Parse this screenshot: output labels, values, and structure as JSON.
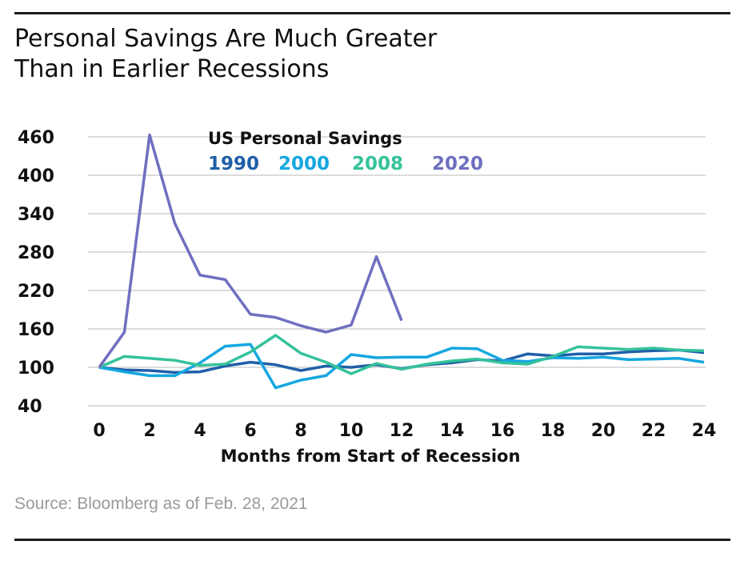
{
  "title_lines": [
    "Personal Savings Are Much Greater",
    "Than in Earlier Recessions"
  ],
  "source": "Source: Bloomberg as of Feb. 28, 2021",
  "chart_data": {
    "type": "line",
    "xlabel": "Months from Start of Recession",
    "ylabel": "",
    "legend_title": "US Personal Savings",
    "legend_position": "top-center",
    "grid": "horizontal",
    "xlim": [
      0,
      24
    ],
    "ylim": [
      40,
      460
    ],
    "xticks": [
      "0",
      "2",
      "4",
      "6",
      "8",
      "10",
      "12",
      "14",
      "16",
      "18",
      "20",
      "22",
      "24"
    ],
    "yticks": [
      "40",
      "100",
      "160",
      "220",
      "280",
      "340",
      "400",
      "460"
    ],
    "series": [
      {
        "name": "1990",
        "color": "#1f5fa8",
        "x": [
          0,
          1,
          2,
          3,
          4,
          5,
          6,
          7,
          8,
          9,
          10,
          11,
          12,
          13,
          14,
          15,
          16,
          17,
          18,
          19,
          20,
          21,
          22,
          23,
          24
        ],
        "values": [
          100,
          96,
          95,
          92,
          93,
          102,
          108,
          104,
          95,
          102,
          100,
          104,
          98,
          104,
          107,
          112,
          110,
          121,
          118,
          121,
          121,
          124,
          126,
          127,
          123
        ]
      },
      {
        "name": "2000",
        "color": "#14a7e0",
        "x": [
          0,
          1,
          2,
          3,
          4,
          5,
          6,
          7,
          8,
          9,
          10,
          11,
          12,
          13,
          14,
          15,
          16,
          17,
          18,
          19,
          20,
          21,
          22,
          23,
          24
        ],
        "values": [
          100,
          93,
          87,
          87,
          107,
          133,
          136,
          68,
          80,
          87,
          120,
          115,
          116,
          116,
          130,
          129,
          111,
          109,
          115,
          114,
          116,
          112,
          113,
          114,
          108
        ]
      },
      {
        "name": "2008",
        "color": "#35c29b",
        "x": [
          0,
          1,
          2,
          3,
          4,
          5,
          6,
          7,
          8,
          9,
          10,
          11,
          12,
          13,
          14,
          15,
          16,
          17,
          18,
          19,
          20,
          21,
          22,
          23,
          24
        ],
        "values": [
          100,
          117,
          114,
          111,
          103,
          105,
          124,
          150,
          122,
          108,
          90,
          106,
          97,
          105,
          110,
          113,
          107,
          105,
          117,
          132,
          130,
          128,
          130,
          127,
          126
        ]
      },
      {
        "name": "2020",
        "color": "#6f6fc0",
        "x": [
          0,
          1,
          2,
          3,
          4,
          5,
          6,
          7,
          8,
          9,
          10,
          11,
          12
        ],
        "values": [
          100,
          155,
          463,
          325,
          244,
          237,
          183,
          178,
          165,
          155,
          166,
          273,
          173
        ]
      }
    ]
  }
}
